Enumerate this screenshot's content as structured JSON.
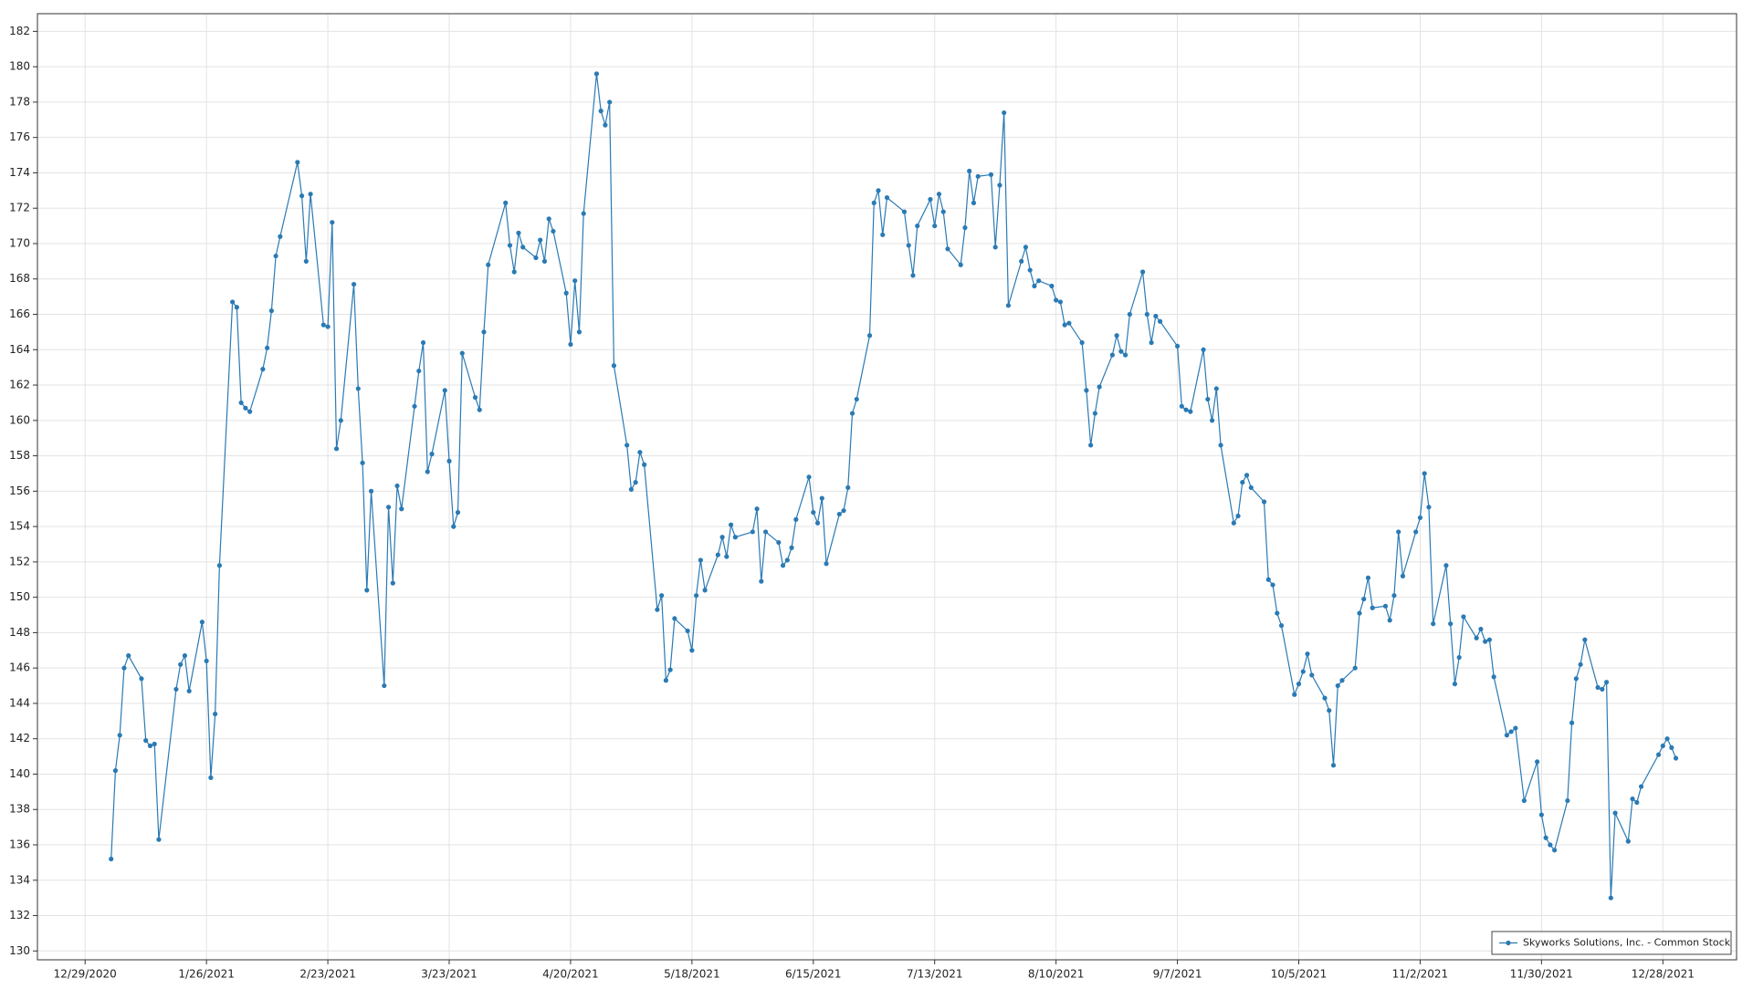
{
  "chart_data": {
    "type": "line",
    "x": [
      "1/4/2021",
      "1/5/2021",
      "1/6/2021",
      "1/7/2021",
      "1/8/2021",
      "1/11/2021",
      "1/12/2021",
      "1/13/2021",
      "1/14/2021",
      "1/15/2021",
      "1/19/2021",
      "1/20/2021",
      "1/21/2021",
      "1/22/2021",
      "1/25/2021",
      "1/26/2021",
      "1/27/2021",
      "1/28/2021",
      "1/29/2021",
      "2/1/2021",
      "2/2/2021",
      "2/3/2021",
      "2/4/2021",
      "2/5/2021",
      "2/8/2021",
      "2/9/2021",
      "2/10/2021",
      "2/11/2021",
      "2/12/2021",
      "2/16/2021",
      "2/17/2021",
      "2/18/2021",
      "2/19/2021",
      "2/22/2021",
      "2/23/2021",
      "2/24/2021",
      "2/25/2021",
      "2/26/2021",
      "3/1/2021",
      "3/2/2021",
      "3/3/2021",
      "3/4/2021",
      "3/5/2021",
      "3/8/2021",
      "3/9/2021",
      "3/10/2021",
      "3/11/2021",
      "3/12/2021",
      "3/15/2021",
      "3/16/2021",
      "3/17/2021",
      "3/18/2021",
      "3/19/2021",
      "3/22/2021",
      "3/23/2021",
      "3/24/2021",
      "3/25/2021",
      "3/26/2021",
      "3/29/2021",
      "3/30/2021",
      "3/31/2021",
      "4/1/2021",
      "4/5/2021",
      "4/6/2021",
      "4/7/2021",
      "4/8/2021",
      "4/9/2021",
      "4/12/2021",
      "4/13/2021",
      "4/14/2021",
      "4/15/2021",
      "4/16/2021",
      "4/19/2021",
      "4/20/2021",
      "4/21/2021",
      "4/22/2021",
      "4/23/2021",
      "4/26/2021",
      "4/27/2021",
      "4/28/2021",
      "4/29/2021",
      "4/30/2021",
      "5/3/2021",
      "5/4/2021",
      "5/5/2021",
      "5/6/2021",
      "5/7/2021",
      "5/10/2021",
      "5/11/2021",
      "5/12/2021",
      "5/13/2021",
      "5/14/2021",
      "5/17/2021",
      "5/18/2021",
      "5/19/2021",
      "5/20/2021",
      "5/21/2021",
      "5/24/2021",
      "5/25/2021",
      "5/26/2021",
      "5/27/2021",
      "5/28/2021",
      "6/1/2021",
      "6/2/2021",
      "6/3/2021",
      "6/4/2021",
      "6/7/2021",
      "6/8/2021",
      "6/9/2021",
      "6/10/2021",
      "6/11/2021",
      "6/14/2021",
      "6/15/2021",
      "6/16/2021",
      "6/17/2021",
      "6/18/2021",
      "6/21/2021",
      "6/22/2021",
      "6/23/2021",
      "6/24/2021",
      "6/25/2021",
      "6/28/2021",
      "6/29/2021",
      "6/30/2021",
      "7/1/2021",
      "7/2/2021",
      "7/6/2021",
      "7/7/2021",
      "7/8/2021",
      "7/9/2021",
      "7/12/2021",
      "7/13/2021",
      "7/14/2021",
      "7/15/2021",
      "7/16/2021",
      "7/19/2021",
      "7/20/2021",
      "7/21/2021",
      "7/22/2021",
      "7/23/2021",
      "7/26/2021",
      "7/27/2021",
      "7/28/2021",
      "7/29/2021",
      "7/30/2021",
      "8/2/2021",
      "8/3/2021",
      "8/4/2021",
      "8/5/2021",
      "8/6/2021",
      "8/9/2021",
      "8/10/2021",
      "8/11/2021",
      "8/12/2021",
      "8/13/2021",
      "8/16/2021",
      "8/17/2021",
      "8/18/2021",
      "8/19/2021",
      "8/20/2021",
      "8/23/2021",
      "8/24/2021",
      "8/25/2021",
      "8/26/2021",
      "8/27/2021",
      "8/30/2021",
      "8/31/2021",
      "9/1/2021",
      "9/2/2021",
      "9/3/2021",
      "9/7/2021",
      "9/8/2021",
      "9/9/2021",
      "9/10/2021",
      "9/13/2021",
      "9/14/2021",
      "9/15/2021",
      "9/16/2021",
      "9/17/2021",
      "9/20/2021",
      "9/21/2021",
      "9/22/2021",
      "9/23/2021",
      "9/24/2021",
      "9/27/2021",
      "9/28/2021",
      "9/29/2021",
      "9/30/2021",
      "10/1/2021",
      "10/4/2021",
      "10/5/2021",
      "10/6/2021",
      "10/7/2021",
      "10/8/2021",
      "10/11/2021",
      "10/12/2021",
      "10/13/2021",
      "10/14/2021",
      "10/15/2021",
      "10/18/2021",
      "10/19/2021",
      "10/20/2021",
      "10/21/2021",
      "10/22/2021",
      "10/25/2021",
      "10/26/2021",
      "10/27/2021",
      "10/28/2021",
      "10/29/2021",
      "11/1/2021",
      "11/2/2021",
      "11/3/2021",
      "11/4/2021",
      "11/5/2021",
      "11/8/2021",
      "11/9/2021",
      "11/10/2021",
      "11/11/2021",
      "11/12/2021",
      "11/15/2021",
      "11/16/2021",
      "11/17/2021",
      "11/18/2021",
      "11/19/2021",
      "11/22/2021",
      "11/23/2021",
      "11/24/2021",
      "11/26/2021",
      "11/29/2021",
      "11/30/2021",
      "12/1/2021",
      "12/2/2021",
      "12/3/2021",
      "12/6/2021",
      "12/7/2021",
      "12/8/2021",
      "12/9/2021",
      "12/10/2021",
      "12/13/2021",
      "12/14/2021",
      "12/15/2021",
      "12/16/2021",
      "12/17/2021",
      "12/20/2021",
      "12/21/2021",
      "12/22/2021",
      "12/23/2021",
      "12/27/2021",
      "12/28/2021",
      "12/29/2021",
      "12/30/2021",
      "12/31/2021"
    ],
    "series": [
      {
        "name": "Skyworks Solutions, Inc. - Common Stock",
        "color": "#2a7ab4",
        "values": [
          135.2,
          140.2,
          142.2,
          146,
          146.7,
          145.4,
          141.9,
          141.6,
          141.7,
          136.3,
          144.8,
          146.2,
          146.7,
          144.7,
          148.6,
          146.4,
          139.8,
          143.4,
          151.8,
          166.7,
          166.4,
          161,
          160.7,
          160.5,
          162.9,
          164.1,
          166.2,
          169.3,
          170.4,
          174.6,
          172.7,
          169,
          172.8,
          165.4,
          165.3,
          171.2,
          158.4,
          160,
          167.7,
          161.8,
          157.6,
          150.4,
          156,
          145,
          155.1,
          150.8,
          156.3,
          155,
          160.8,
          162.8,
          164.4,
          157.1,
          158.1,
          161.7,
          157.7,
          154,
          154.8,
          163.8,
          161.3,
          160.6,
          165,
          168.8,
          172.3,
          169.9,
          168.4,
          170.6,
          169.8,
          169.2,
          170.2,
          169,
          171.4,
          170.7,
          167.2,
          164.3,
          167.9,
          165,
          171.7,
          179.6,
          177.5,
          176.7,
          178,
          163.1,
          158.6,
          156.1,
          156.5,
          158.2,
          157.5,
          149.3,
          150.1,
          145.3,
          145.9,
          148.8,
          148.1,
          147,
          150.1,
          152.1,
          150.4,
          152.4,
          153.4,
          152.3,
          154.1,
          153.4,
          153.7,
          155,
          150.9,
          153.7,
          153.1,
          151.8,
          152.1,
          152.8,
          154.4,
          156.8,
          154.8,
          154.2,
          155.6,
          151.9,
          154.7,
          154.9,
          156.2,
          160.4,
          161.2,
          164.8,
          172.3,
          173,
          170.5,
          172.6,
          171.8,
          169.9,
          168.2,
          171,
          172.5,
          171,
          172.8,
          171.8,
          169.7,
          168.8,
          170.9,
          174.1,
          172.3,
          173.8,
          173.9,
          169.8,
          173.3,
          177.4,
          166.5,
          169,
          169.8,
          168.5,
          167.6,
          167.9,
          167.6,
          166.8,
          166.7,
          165.4,
          165.5,
          164.4,
          161.7,
          158.6,
          160.4,
          161.9,
          163.7,
          164.8,
          163.9,
          163.7,
          166,
          168.4,
          166,
          164.4,
          165.9,
          165.6,
          164.2,
          160.8,
          160.6,
          160.5,
          164,
          161.2,
          160,
          161.8,
          158.6,
          154.2,
          154.6,
          156.5,
          156.9,
          156.2,
          155.4,
          151,
          150.7,
          149.1,
          148.4,
          144.5,
          145.1,
          145.8,
          146.8,
          145.6,
          144.3,
          143.6,
          140.5,
          145,
          145.3,
          146,
          149.1,
          149.9,
          151.1,
          149.4,
          149.5,
          148.7,
          150.1,
          153.7,
          151.2,
          153.7,
          154.5,
          157,
          155.1,
          148.5,
          151.8,
          148.5,
          145.1,
          146.6,
          148.9,
          147.7,
          148.2,
          147.5,
          147.6,
          145.5,
          142.2,
          142.4,
          142.6,
          138.5,
          140.7,
          137.7,
          136.4,
          136,
          135.7,
          138.5,
          142.9,
          145.4,
          146.2,
          147.6,
          144.9,
          144.8,
          145.2,
          133,
          137.8,
          136.2,
          138.6,
          138.4,
          139.3,
          141.1,
          141.6,
          142,
          141.5,
          140.9
        ]
      }
    ],
    "xlim": [
      "12/18/2020",
      "1/14/2022"
    ],
    "xticks": [
      "12/29/2020",
      "1/26/2021",
      "2/23/2021",
      "3/23/2021",
      "4/20/2021",
      "5/18/2021",
      "6/15/2021",
      "7/13/2021",
      "8/10/2021",
      "9/7/2021",
      "10/5/2021",
      "11/2/2021",
      "11/30/2021",
      "12/28/2021"
    ],
    "ylim": [
      129.5,
      183
    ],
    "yticks": [
      130,
      132,
      134,
      136,
      138,
      140,
      142,
      144,
      146,
      148,
      150,
      152,
      154,
      156,
      158,
      160,
      162,
      164,
      166,
      168,
      170,
      172,
      174,
      176,
      178,
      180,
      182
    ],
    "grid": true,
    "legend": "lower right"
  }
}
